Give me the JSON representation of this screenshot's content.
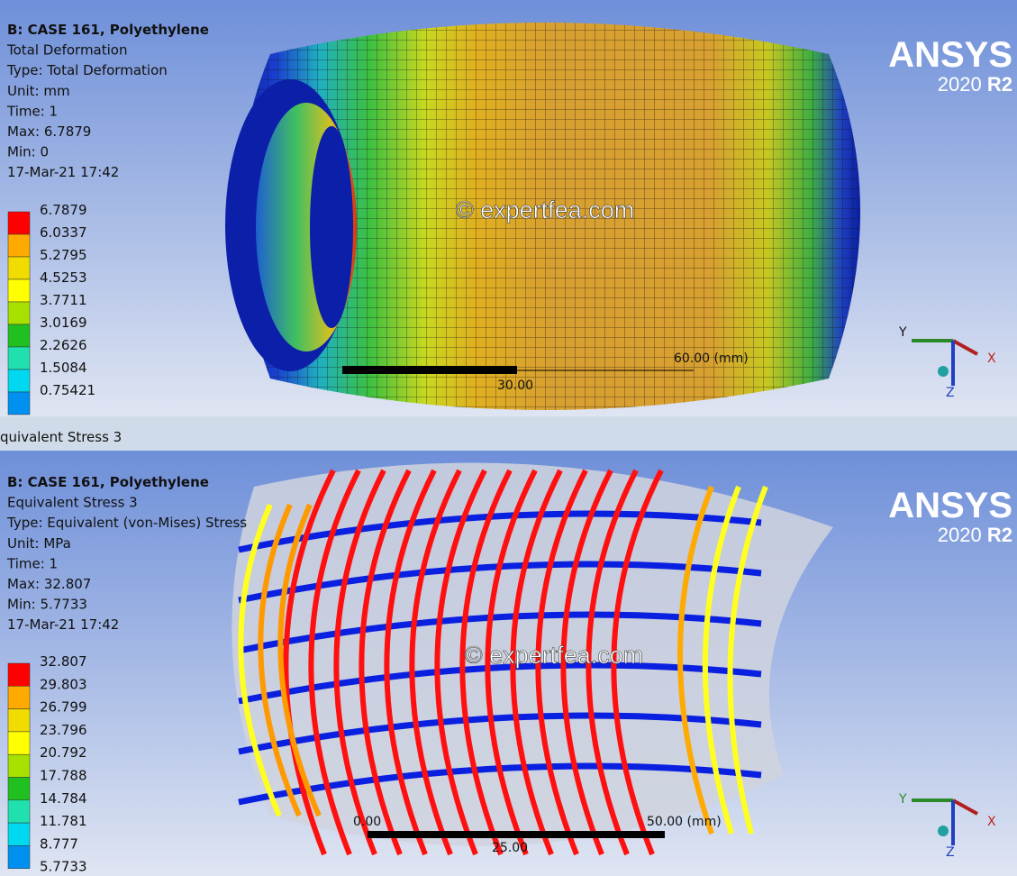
{
  "tab": "quivalent Stress 3",
  "panels": [
    {
      "header": {
        "title": "B: CASE 161, Polyethylene",
        "lines": [
          "Total Deformation",
          "Type: Total Deformation",
          "Unit: mm",
          "Time: 1",
          "Max: 6.7879",
          "Min: 0",
          "17-Mar-21 17:42"
        ]
      },
      "legend": [
        "6.7879",
        "6.0337",
        "5.2795",
        "4.5253",
        "3.7711",
        "3.0169",
        "2.2626",
        "1.5084",
        "0.75421"
      ],
      "watermark": "© expertfea.com",
      "logo": {
        "name": "ANSYS",
        "version": "2020",
        "release": "R2"
      },
      "scale": {
        "right": "60.00 (mm)",
        "middle": "30.00"
      },
      "axes": {
        "y": "Y",
        "x": "X",
        "z": "Z"
      }
    },
    {
      "header": {
        "title": "B: CASE 161, Polyethylene",
        "lines": [
          "Equivalent Stress 3",
          "Type: Equivalent (von-Mises) Stress",
          "Unit: MPa",
          "Time: 1",
          "Max: 32.807",
          "Min: 5.7733",
          "17-Mar-21 17:42"
        ]
      },
      "legend": [
        "32.807",
        "29.803",
        "26.799",
        "23.796",
        "20.792",
        "17.788",
        "14.784",
        "11.781",
        "8.777",
        "5.7733"
      ],
      "watermark": "© expertfea.com",
      "logo": {
        "name": "ANSYS",
        "version": "2020",
        "release": "R2"
      },
      "scale": {
        "left": "0.00",
        "right": "50.00 (mm)",
        "middle": "25.00"
      },
      "axes": {
        "y": "Y",
        "x": "X",
        "z": "Z"
      }
    }
  ]
}
